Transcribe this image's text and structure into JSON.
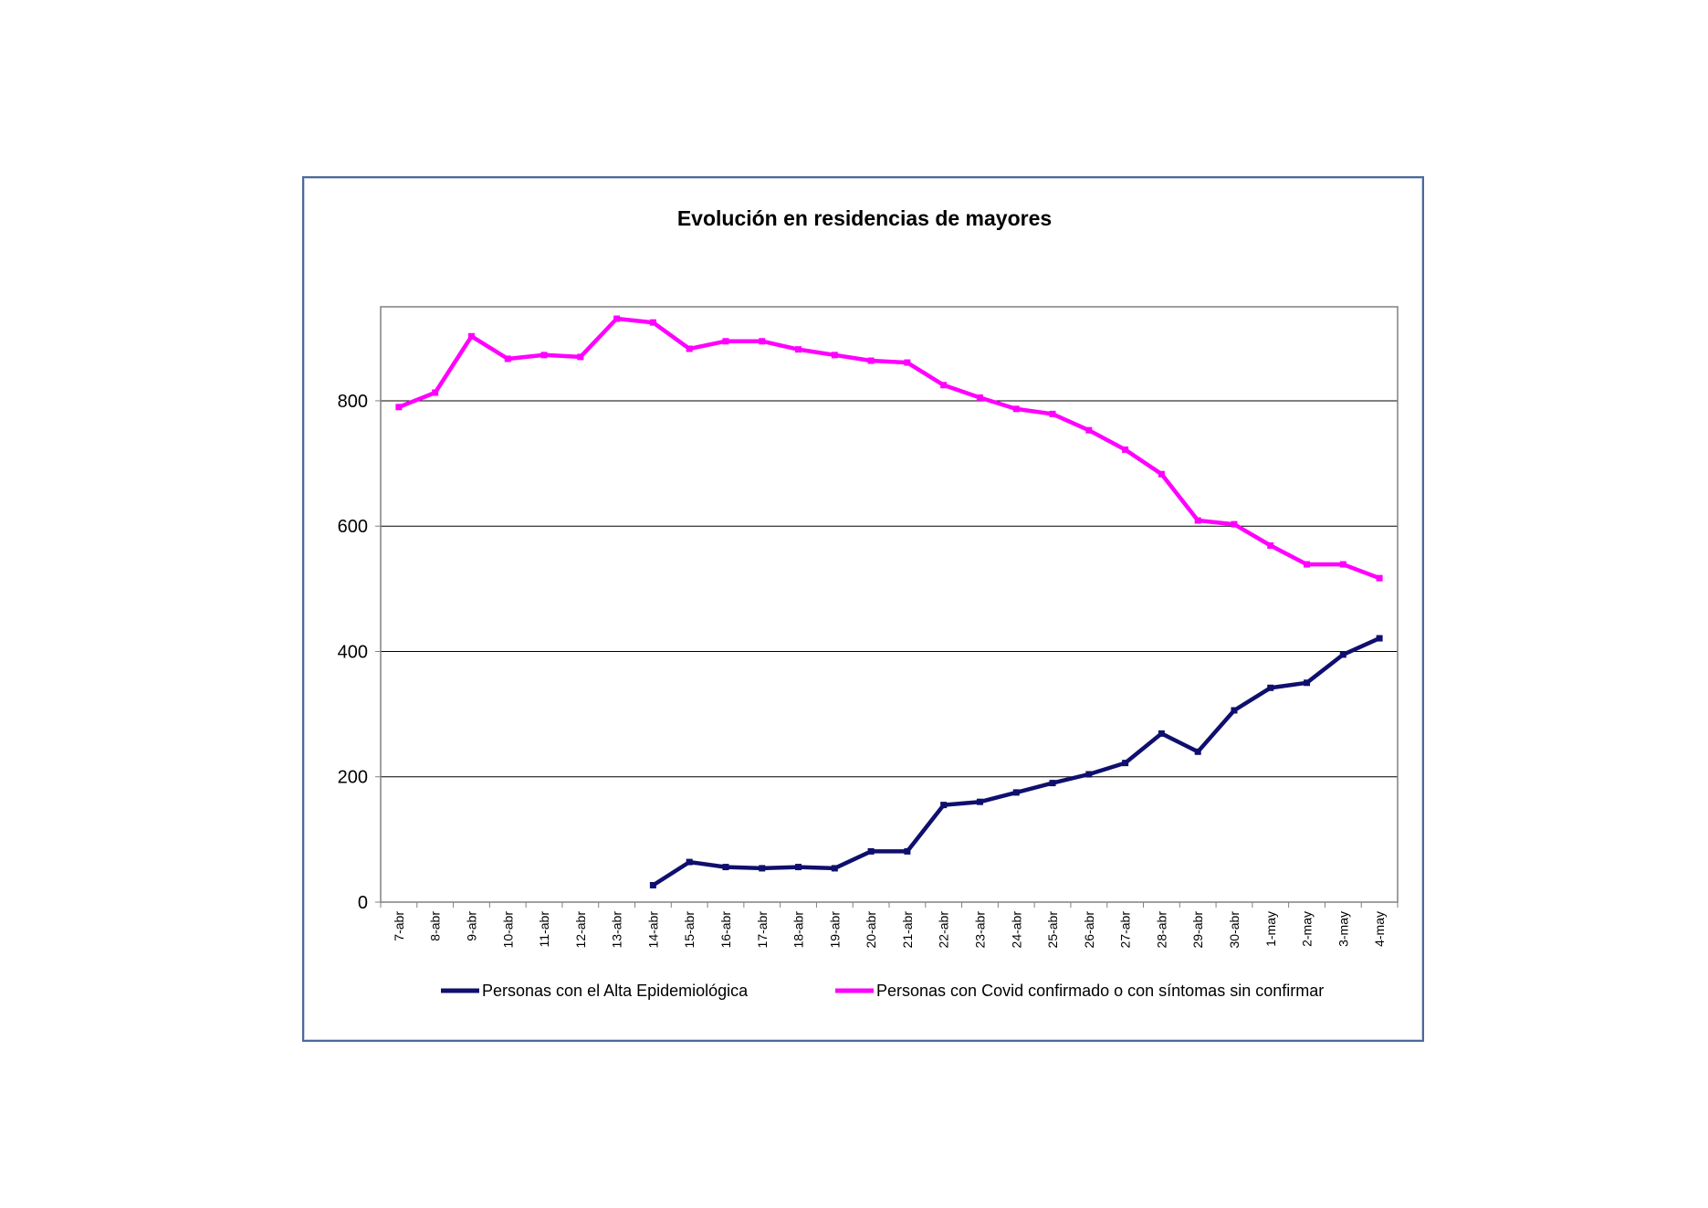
{
  "chart_data": {
    "type": "line",
    "title": "Evolución en residencias de mayores",
    "xlabel": "",
    "ylabel": "",
    "categories": [
      "7-abr",
      "8-abr",
      "9-abr",
      "10-abr",
      "11-abr",
      "12-abr",
      "13-abr",
      "14-abr",
      "15-abr",
      "16-abr",
      "17-abr",
      "18-abr",
      "19-abr",
      "20-abr",
      "21-abr",
      "22-abr",
      "23-abr",
      "24-abr",
      "25-abr",
      "26-abr",
      "27-abr",
      "28-abr",
      "29-abr",
      "30-abr",
      "1-may",
      "2-may",
      "3-may",
      "4-may"
    ],
    "ylim": [
      0,
      950
    ],
    "yticks": [
      0,
      200,
      400,
      600,
      800
    ],
    "grid": true,
    "legend_position": "bottom",
    "series": [
      {
        "name": "Personas con el Alta Epidemiológica",
        "color": "#0f0f6e",
        "values": [
          null,
          null,
          null,
          null,
          null,
          null,
          null,
          27,
          64,
          56,
          54,
          56,
          54,
          81,
          81,
          155,
          160,
          175,
          190,
          204,
          222,
          269,
          240,
          306,
          342,
          350,
          395,
          421
        ]
      },
      {
        "name": "Personas con Covid confirmado o con síntomas sin confirmar",
        "color": "#ff00ff",
        "values": [
          790,
          813,
          903,
          867,
          873,
          870,
          931,
          925,
          883,
          895,
          895,
          882,
          873,
          864,
          861,
          825,
          805,
          787,
          779,
          753,
          722,
          683,
          609,
          603,
          569,
          539,
          539,
          517
        ]
      }
    ]
  }
}
